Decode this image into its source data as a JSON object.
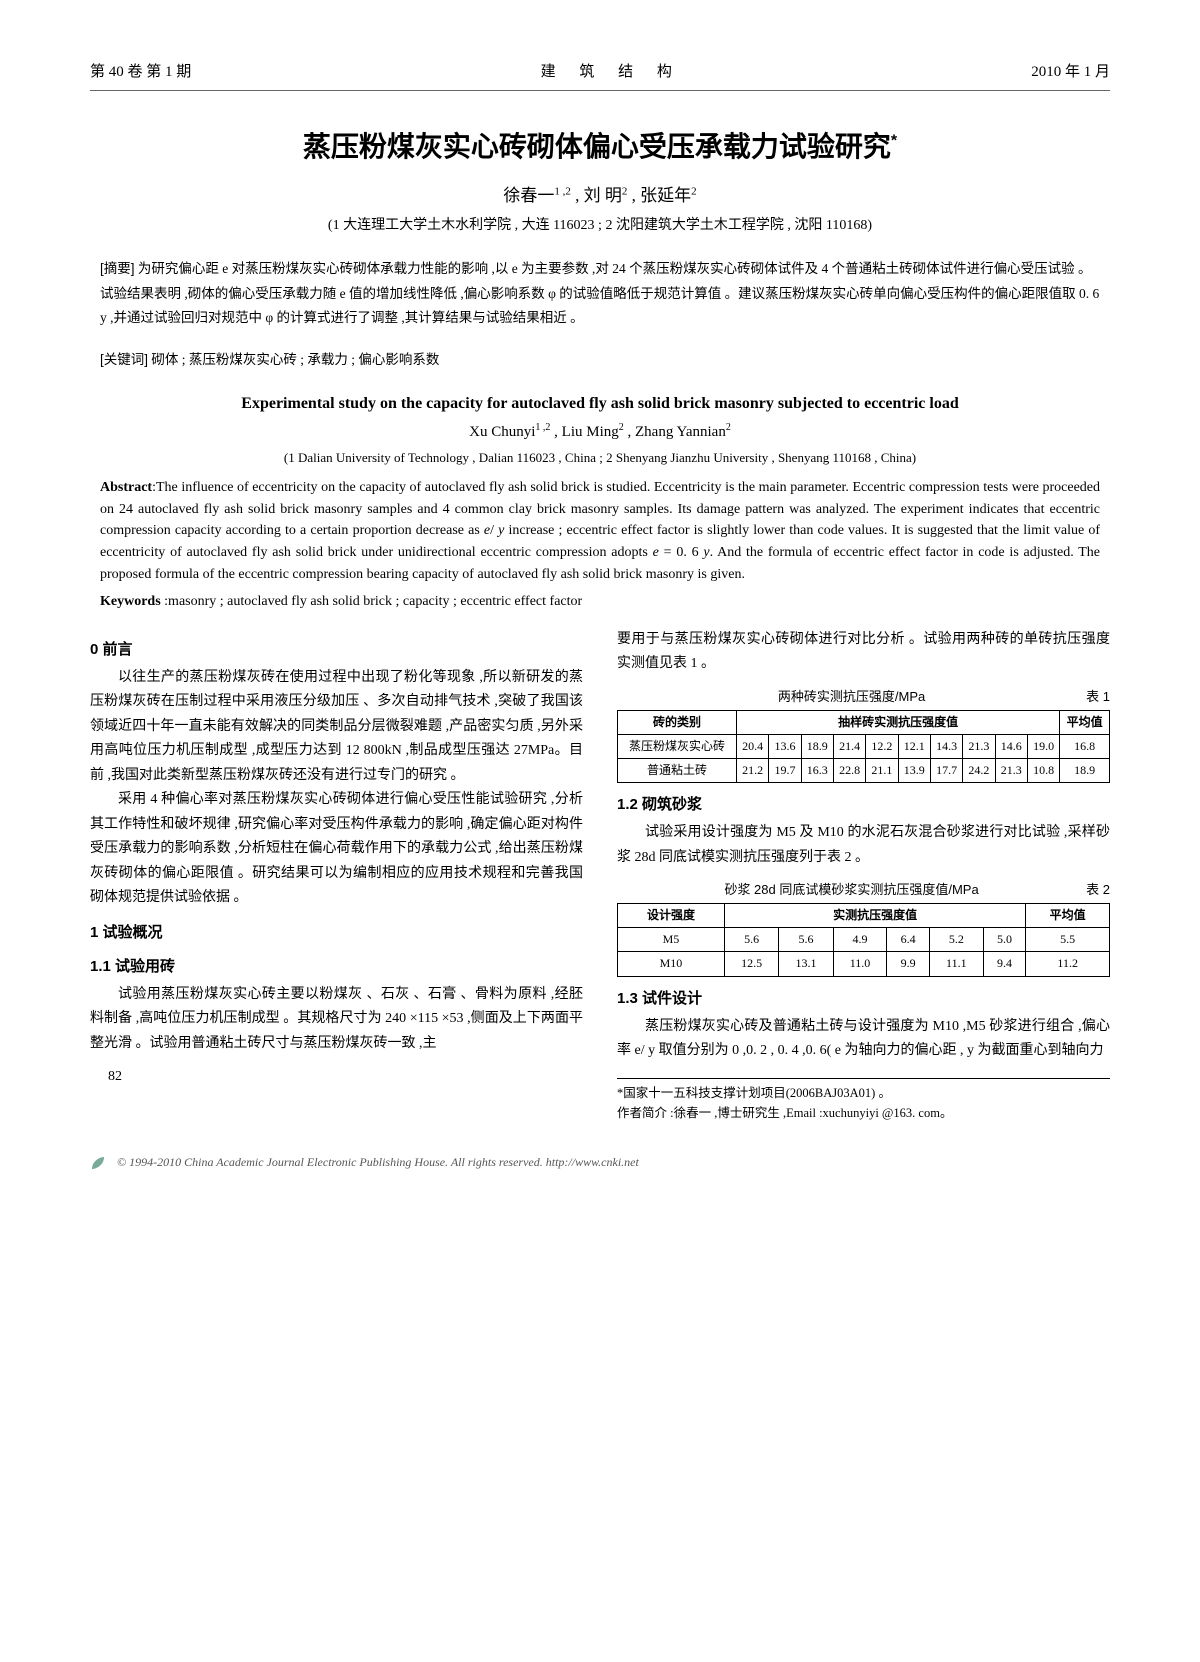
{
  "header": {
    "left": "第 40 卷 第 1 期",
    "center": "建 筑 结 构",
    "right": "2010 年 1 月"
  },
  "title": "蒸压粉煤灰实心砖砌体偏心受压承载力试验研究",
  "title_sup": "*",
  "authors_html": "徐春一<sup>1 ,2</sup> , 刘 明<sup>2</sup> , 张延年<sup>2</sup>",
  "affil": "(1 大连理工大学土木水利学院 , 大连 116023 ; 2 沈阳建筑大学土木工程学院 , 沈阳 110168)",
  "abs_label": "[摘要]",
  "abs_text": "为研究偏心距 e 对蒸压粉煤灰实心砖砌体承载力性能的影响 ,以 e 为主要参数 ,对 24 个蒸压粉煤灰实心砖砌体试件及 4 个普通粘土砖砌体试件进行偏心受压试验 。试验结果表明 ,砌体的偏心受压承载力随 e 值的增加线性降低 ,偏心影响系数 φ 的试验值略低于规范计算值 。建议蒸压粉煤灰实心砖单向偏心受压构件的偏心距限值取 0. 6 y ,并通过试验回归对规范中 φ 的计算式进行了调整 ,其计算结果与试验结果相近 。",
  "kw_label": "[关键词]",
  "kw_text": "砌体 ; 蒸压粉煤灰实心砖 ; 承载力 ; 偏心影响系数",
  "en_title": "Experimental study on the capacity for autoclaved fly ash solid brick masonry subjected to eccentric load",
  "en_authors_html": "Xu Chunyi<sup>1 ,2</sup> , Liu Ming<sup>2</sup> , Zhang Yannian<sup>2</sup>",
  "en_affil": "(1 Dalian University of Technology , Dalian 116023 , China ; 2 Shenyang Jianzhu University , Shenyang 110168 , China)",
  "en_abs": "Abstract :The influence of eccentricity on the capacity of autoclaved fly ash solid brick is studied. Eccentricity is the main parameter. Eccentric compression tests were proceeded on 24 autoclaved fly ash solid brick masonry samples and 4 common clay brick masonry samples. Its damage pattern was analyzed. The experiment indicates that eccentric compression capacity according to a certain proportion decrease as e/ y increase ; eccentric effect factor is slightly lower than code values. It is suggested that the limit value of eccentricity of autoclaved fly ash solid brick under unidirectional eccentric compression adopts e = 0. 6 y. And the formula of eccentric effect factor in code is adjusted. The proposed formula of the eccentric compression bearing capacity of autoclaved fly ash solid brick masonry is given.",
  "en_kw": "Keywords :masonry ; autoclaved fly ash solid brick ; capacity ; eccentric effect factor",
  "sec0": "0  前言",
  "p0a": "以往生产的蒸压粉煤灰砖在使用过程中出现了粉化等现象 ,所以新研发的蒸压粉煤灰砖在压制过程中采用液压分级加压 、多次自动排气技术 ,突破了我国该领域近四十年一直未能有效解决的同类制品分层微裂难题 ,产品密实匀质 ,另外采用高吨位压力机压制成型 ,成型压力达到 12 800kN ,制品成型压强达 27MPa。目前 ,我国对此类新型蒸压粉煤灰砖还没有进行过专门的研究 。",
  "p0b": "采用 4 种偏心率对蒸压粉煤灰实心砖砌体进行偏心受压性能试验研究 ,分析其工作特性和破坏规律 ,研究偏心率对受压构件承载力的影响 ,确定偏心距对构件受压承载力的影响系数 ,分析短柱在偏心荷载作用下的承载力公式 ,给出蒸压粉煤灰砖砌体的偏心距限值 。研究结果可以为编制相应的应用技术规程和完善我国砌体规范提供试验依据 。",
  "sec1": "1  试验概况",
  "sec11": "1.1 试验用砖",
  "p11": "试验用蒸压粉煤灰实心砖主要以粉煤灰 、石灰 、石膏 、骨料为原料 ,经胚料制备 ,高吨位压力机压制成型 。其规格尺寸为 240 ×115 ×53 ,侧面及上下两面平整光滑 。试验用普通粘土砖尺寸与蒸压粉煤灰砖一致 ,主",
  "p11r": "要用于与蒸压粉煤灰实心砖砌体进行对比分析 。试验用两种砖的单砖抗压强度实测值见表 1 。",
  "t1_cap": "两种砖实测抗压强度/MPa",
  "t1_no": "表 1",
  "t1_h1": "砖的类别",
  "t1_h2": "抽样砖实测抗压强度值",
  "t1_h3": "平均值",
  "t1_r1_label": "蒸压粉煤灰实心砖",
  "t1_r1": [
    "20.4",
    "13.6",
    "18.9",
    "21.4",
    "12.2",
    "12.1",
    "14.3",
    "21.3",
    "14.6",
    "19.0"
  ],
  "t1_r1_avg": "16.8",
  "t1_r2_label": "普通粘土砖",
  "t1_r2": [
    "21.2",
    "19.7",
    "16.3",
    "22.8",
    "21.1",
    "13.9",
    "17.7",
    "24.2",
    "21.3",
    "10.8"
  ],
  "t1_r2_avg": "18.9",
  "sec12": "1.2 砌筑砂浆",
  "p12": "试验采用设计强度为 M5 及 M10 的水泥石灰混合砂浆进行对比试验 ,采样砂浆 28d 同底试模实测抗压强度列于表 2 。",
  "t2_cap": "砂浆 28d 同底试模砂浆实测抗压强度值/MPa",
  "t2_no": "表 2",
  "t2_h1": "设计强度",
  "t2_h2": "实测抗压强度值",
  "t2_h3": "平均值",
  "t2_r1_label": "M5",
  "t2_r1": [
    "5.6",
    "5.6",
    "4.9",
    "6.4",
    "5.2",
    "5.0"
  ],
  "t2_r1_avg": "5.5",
  "t2_r2_label": "M10",
  "t2_r2": [
    "12.5",
    "13.1",
    "11.0",
    "9.9",
    "11.1",
    "9.4"
  ],
  "t2_r2_avg": "11.2",
  "sec13": "1.3 试件设计",
  "p13": "蒸压粉煤灰实心砖及普通粘土砖与设计强度为 M10 ,M5 砂浆进行组合 ,偏心率 e/ y 取值分别为 0 ,0. 2 , 0. 4 ,0. 6( e 为轴向力的偏心距 , y 为截面重心到轴向力",
  "fn1": "*国家十一五科技支撑计划项目(2006BAJ03A01) 。",
  "fn2": "作者简介 :徐春一 ,博士研究生 ,Email :xuchunyiyi @163. com。",
  "page_num": "82",
  "bottom": "© 1994-2010 China Academic Journal Electronic Publishing House. All rights reserved.   http://www.cnki.net"
}
